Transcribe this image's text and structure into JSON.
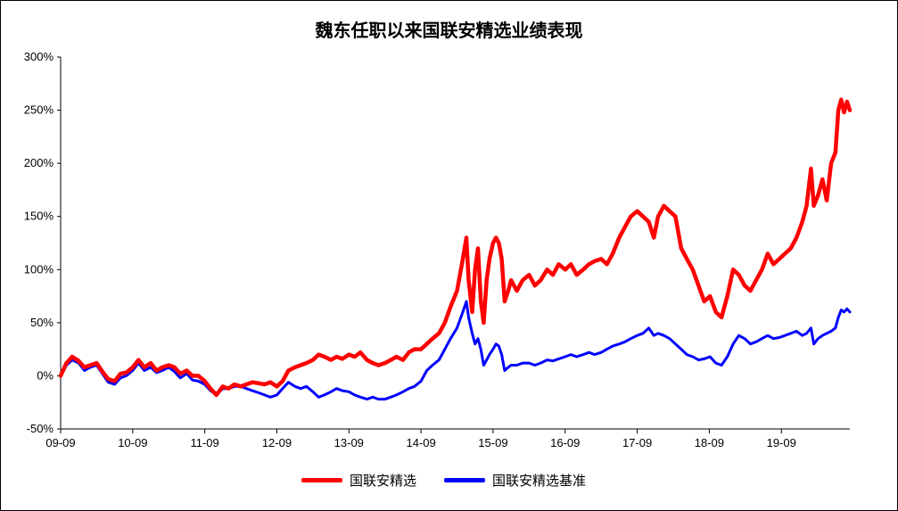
{
  "chart_data": {
    "type": "line",
    "title": "魏东任职以来国联安精选业绩表现",
    "xlabel": "",
    "ylabel": "",
    "ylim": [
      -50,
      300
    ],
    "y_ticks": [
      "-50%",
      "0%",
      "50%",
      "100%",
      "150%",
      "200%",
      "250%",
      "300%"
    ],
    "y_tick_values": [
      -50,
      0,
      50,
      100,
      150,
      200,
      250,
      300
    ],
    "x_ticks": [
      "09-09",
      "10-09",
      "11-09",
      "12-09",
      "13-09",
      "14-09",
      "15-09",
      "16-09",
      "17-09",
      "18-09",
      "19-09"
    ],
    "x_tick_values": [
      2009.67,
      2010.67,
      2011.67,
      2012.67,
      2013.67,
      2014.67,
      2015.67,
      2016.67,
      2017.67,
      2018.67,
      2019.67
    ],
    "xlim": [
      2009.67,
      2020.62
    ],
    "grid": false,
    "legend_position": "bottom",
    "series": [
      {
        "name": "国联安精选",
        "color": "#ff0000",
        "points": [
          [
            2009.67,
            0
          ],
          [
            2009.75,
            12
          ],
          [
            2009.83,
            18
          ],
          [
            2009.92,
            14
          ],
          [
            2010.0,
            8
          ],
          [
            2010.08,
            10
          ],
          [
            2010.17,
            12
          ],
          [
            2010.25,
            4
          ],
          [
            2010.33,
            -3
          ],
          [
            2010.42,
            -5
          ],
          [
            2010.5,
            2
          ],
          [
            2010.58,
            3
          ],
          [
            2010.67,
            8
          ],
          [
            2010.75,
            15
          ],
          [
            2010.83,
            8
          ],
          [
            2010.92,
            12
          ],
          [
            2011.0,
            5
          ],
          [
            2011.08,
            8
          ],
          [
            2011.17,
            10
          ],
          [
            2011.25,
            8
          ],
          [
            2011.33,
            2
          ],
          [
            2011.42,
            5
          ],
          [
            2011.5,
            0
          ],
          [
            2011.58,
            0
          ],
          [
            2011.67,
            -5
          ],
          [
            2011.75,
            -12
          ],
          [
            2011.83,
            -18
          ],
          [
            2011.92,
            -10
          ],
          [
            2012.0,
            -12
          ],
          [
            2012.08,
            -8
          ],
          [
            2012.17,
            -10
          ],
          [
            2012.25,
            -8
          ],
          [
            2012.33,
            -6
          ],
          [
            2012.42,
            -7
          ],
          [
            2012.5,
            -8
          ],
          [
            2012.58,
            -6
          ],
          [
            2012.67,
            -10
          ],
          [
            2012.75,
            -5
          ],
          [
            2012.83,
            5
          ],
          [
            2012.92,
            8
          ],
          [
            2013.0,
            10
          ],
          [
            2013.08,
            12
          ],
          [
            2013.17,
            15
          ],
          [
            2013.25,
            20
          ],
          [
            2013.33,
            18
          ],
          [
            2013.42,
            15
          ],
          [
            2013.5,
            18
          ],
          [
            2013.58,
            16
          ],
          [
            2013.67,
            20
          ],
          [
            2013.75,
            18
          ],
          [
            2013.83,
            22
          ],
          [
            2013.92,
            15
          ],
          [
            2014.0,
            12
          ],
          [
            2014.08,
            10
          ],
          [
            2014.17,
            12
          ],
          [
            2014.25,
            15
          ],
          [
            2014.33,
            18
          ],
          [
            2014.42,
            15
          ],
          [
            2014.5,
            22
          ],
          [
            2014.58,
            25
          ],
          [
            2014.67,
            25
          ],
          [
            2014.75,
            30
          ],
          [
            2014.83,
            35
          ],
          [
            2014.92,
            40
          ],
          [
            2015.0,
            50
          ],
          [
            2015.08,
            65
          ],
          [
            2015.17,
            80
          ],
          [
            2015.25,
            110
          ],
          [
            2015.3,
            130
          ],
          [
            2015.33,
            90
          ],
          [
            2015.38,
            60
          ],
          [
            2015.42,
            100
          ],
          [
            2015.46,
            120
          ],
          [
            2015.5,
            70
          ],
          [
            2015.54,
            50
          ],
          [
            2015.58,
            90
          ],
          [
            2015.62,
            110
          ],
          [
            2015.67,
            125
          ],
          [
            2015.71,
            130
          ],
          [
            2015.75,
            125
          ],
          [
            2015.79,
            110
          ],
          [
            2015.83,
            70
          ],
          [
            2015.88,
            80
          ],
          [
            2015.92,
            90
          ],
          [
            2016.0,
            80
          ],
          [
            2016.08,
            90
          ],
          [
            2016.17,
            95
          ],
          [
            2016.25,
            85
          ],
          [
            2016.33,
            90
          ],
          [
            2016.42,
            100
          ],
          [
            2016.5,
            95
          ],
          [
            2016.58,
            105
          ],
          [
            2016.67,
            100
          ],
          [
            2016.75,
            105
          ],
          [
            2016.83,
            95
          ],
          [
            2016.92,
            100
          ],
          [
            2017.0,
            105
          ],
          [
            2017.08,
            108
          ],
          [
            2017.17,
            110
          ],
          [
            2017.25,
            105
          ],
          [
            2017.33,
            115
          ],
          [
            2017.42,
            130
          ],
          [
            2017.5,
            140
          ],
          [
            2017.58,
            150
          ],
          [
            2017.67,
            155
          ],
          [
            2017.75,
            150
          ],
          [
            2017.83,
            145
          ],
          [
            2017.9,
            130
          ],
          [
            2017.96,
            150
          ],
          [
            2018.04,
            160
          ],
          [
            2018.12,
            155
          ],
          [
            2018.2,
            150
          ],
          [
            2018.28,
            120
          ],
          [
            2018.36,
            110
          ],
          [
            2018.44,
            100
          ],
          [
            2018.52,
            85
          ],
          [
            2018.6,
            70
          ],
          [
            2018.68,
            75
          ],
          [
            2018.76,
            60
          ],
          [
            2018.84,
            55
          ],
          [
            2018.92,
            75
          ],
          [
            2019.0,
            100
          ],
          [
            2019.08,
            95
          ],
          [
            2019.16,
            85
          ],
          [
            2019.24,
            80
          ],
          [
            2019.32,
            90
          ],
          [
            2019.4,
            100
          ],
          [
            2019.48,
            115
          ],
          [
            2019.56,
            105
          ],
          [
            2019.64,
            110
          ],
          [
            2019.72,
            115
          ],
          [
            2019.8,
            120
          ],
          [
            2019.88,
            130
          ],
          [
            2019.96,
            145
          ],
          [
            2020.02,
            160
          ],
          [
            2020.08,
            195
          ],
          [
            2020.12,
            160
          ],
          [
            2020.18,
            170
          ],
          [
            2020.24,
            185
          ],
          [
            2020.3,
            165
          ],
          [
            2020.36,
            200
          ],
          [
            2020.42,
            210
          ],
          [
            2020.46,
            250
          ],
          [
            2020.5,
            260
          ],
          [
            2020.54,
            248
          ],
          [
            2020.58,
            258
          ],
          [
            2020.62,
            250
          ]
        ]
      },
      {
        "name": "国联安精选基准",
        "color": "#0000ff",
        "points": [
          [
            2009.67,
            0
          ],
          [
            2009.75,
            10
          ],
          [
            2009.83,
            15
          ],
          [
            2009.92,
            12
          ],
          [
            2010.0,
            5
          ],
          [
            2010.08,
            8
          ],
          [
            2010.17,
            10
          ],
          [
            2010.25,
            2
          ],
          [
            2010.33,
            -6
          ],
          [
            2010.42,
            -8
          ],
          [
            2010.5,
            -2
          ],
          [
            2010.58,
            0
          ],
          [
            2010.67,
            5
          ],
          [
            2010.75,
            12
          ],
          [
            2010.83,
            5
          ],
          [
            2010.92,
            8
          ],
          [
            2011.0,
            3
          ],
          [
            2011.08,
            5
          ],
          [
            2011.17,
            8
          ],
          [
            2011.25,
            4
          ],
          [
            2011.33,
            -2
          ],
          [
            2011.42,
            2
          ],
          [
            2011.5,
            -4
          ],
          [
            2011.58,
            -5
          ],
          [
            2011.67,
            -8
          ],
          [
            2011.75,
            -14
          ],
          [
            2011.83,
            -18
          ],
          [
            2011.92,
            -12
          ],
          [
            2012.0,
            -12
          ],
          [
            2012.08,
            -10
          ],
          [
            2012.17,
            -10
          ],
          [
            2012.25,
            -12
          ],
          [
            2012.33,
            -14
          ],
          [
            2012.42,
            -16
          ],
          [
            2012.5,
            -18
          ],
          [
            2012.58,
            -20
          ],
          [
            2012.67,
            -18
          ],
          [
            2012.75,
            -12
          ],
          [
            2012.83,
            -6
          ],
          [
            2012.92,
            -10
          ],
          [
            2013.0,
            -12
          ],
          [
            2013.08,
            -10
          ],
          [
            2013.17,
            -15
          ],
          [
            2013.25,
            -20
          ],
          [
            2013.33,
            -18
          ],
          [
            2013.42,
            -15
          ],
          [
            2013.5,
            -12
          ],
          [
            2013.58,
            -14
          ],
          [
            2013.67,
            -15
          ],
          [
            2013.75,
            -18
          ],
          [
            2013.83,
            -20
          ],
          [
            2013.92,
            -22
          ],
          [
            2014.0,
            -20
          ],
          [
            2014.08,
            -22
          ],
          [
            2014.17,
            -22
          ],
          [
            2014.25,
            -20
          ],
          [
            2014.33,
            -18
          ],
          [
            2014.42,
            -15
          ],
          [
            2014.5,
            -12
          ],
          [
            2014.58,
            -10
          ],
          [
            2014.67,
            -5
          ],
          [
            2014.75,
            5
          ],
          [
            2014.83,
            10
          ],
          [
            2014.92,
            15
          ],
          [
            2015.0,
            25
          ],
          [
            2015.08,
            35
          ],
          [
            2015.17,
            45
          ],
          [
            2015.25,
            60
          ],
          [
            2015.3,
            70
          ],
          [
            2015.33,
            55
          ],
          [
            2015.38,
            40
          ],
          [
            2015.42,
            30
          ],
          [
            2015.46,
            35
          ],
          [
            2015.5,
            25
          ],
          [
            2015.54,
            10
          ],
          [
            2015.58,
            15
          ],
          [
            2015.62,
            20
          ],
          [
            2015.67,
            25
          ],
          [
            2015.71,
            30
          ],
          [
            2015.75,
            28
          ],
          [
            2015.79,
            20
          ],
          [
            2015.83,
            5
          ],
          [
            2015.88,
            8
          ],
          [
            2015.92,
            10
          ],
          [
            2016.0,
            10
          ],
          [
            2016.08,
            12
          ],
          [
            2016.17,
            12
          ],
          [
            2016.25,
            10
          ],
          [
            2016.33,
            12
          ],
          [
            2016.42,
            15
          ],
          [
            2016.5,
            14
          ],
          [
            2016.58,
            16
          ],
          [
            2016.67,
            18
          ],
          [
            2016.75,
            20
          ],
          [
            2016.83,
            18
          ],
          [
            2016.92,
            20
          ],
          [
            2017.0,
            22
          ],
          [
            2017.08,
            20
          ],
          [
            2017.17,
            22
          ],
          [
            2017.25,
            25
          ],
          [
            2017.33,
            28
          ],
          [
            2017.42,
            30
          ],
          [
            2017.5,
            32
          ],
          [
            2017.58,
            35
          ],
          [
            2017.67,
            38
          ],
          [
            2017.75,
            40
          ],
          [
            2017.83,
            45
          ],
          [
            2017.9,
            38
          ],
          [
            2017.96,
            40
          ],
          [
            2018.04,
            38
          ],
          [
            2018.12,
            35
          ],
          [
            2018.2,
            30
          ],
          [
            2018.28,
            25
          ],
          [
            2018.36,
            20
          ],
          [
            2018.44,
            18
          ],
          [
            2018.52,
            15
          ],
          [
            2018.6,
            16
          ],
          [
            2018.68,
            18
          ],
          [
            2018.76,
            12
          ],
          [
            2018.84,
            10
          ],
          [
            2018.92,
            18
          ],
          [
            2019.0,
            30
          ],
          [
            2019.08,
            38
          ],
          [
            2019.16,
            35
          ],
          [
            2019.24,
            30
          ],
          [
            2019.32,
            32
          ],
          [
            2019.4,
            35
          ],
          [
            2019.48,
            38
          ],
          [
            2019.56,
            35
          ],
          [
            2019.64,
            36
          ],
          [
            2019.72,
            38
          ],
          [
            2019.8,
            40
          ],
          [
            2019.88,
            42
          ],
          [
            2019.96,
            38
          ],
          [
            2020.02,
            40
          ],
          [
            2020.08,
            45
          ],
          [
            2020.12,
            30
          ],
          [
            2020.18,
            35
          ],
          [
            2020.24,
            38
          ],
          [
            2020.3,
            40
          ],
          [
            2020.36,
            42
          ],
          [
            2020.42,
            45
          ],
          [
            2020.46,
            55
          ],
          [
            2020.5,
            62
          ],
          [
            2020.54,
            60
          ],
          [
            2020.58,
            63
          ],
          [
            2020.62,
            60
          ]
        ]
      }
    ]
  }
}
